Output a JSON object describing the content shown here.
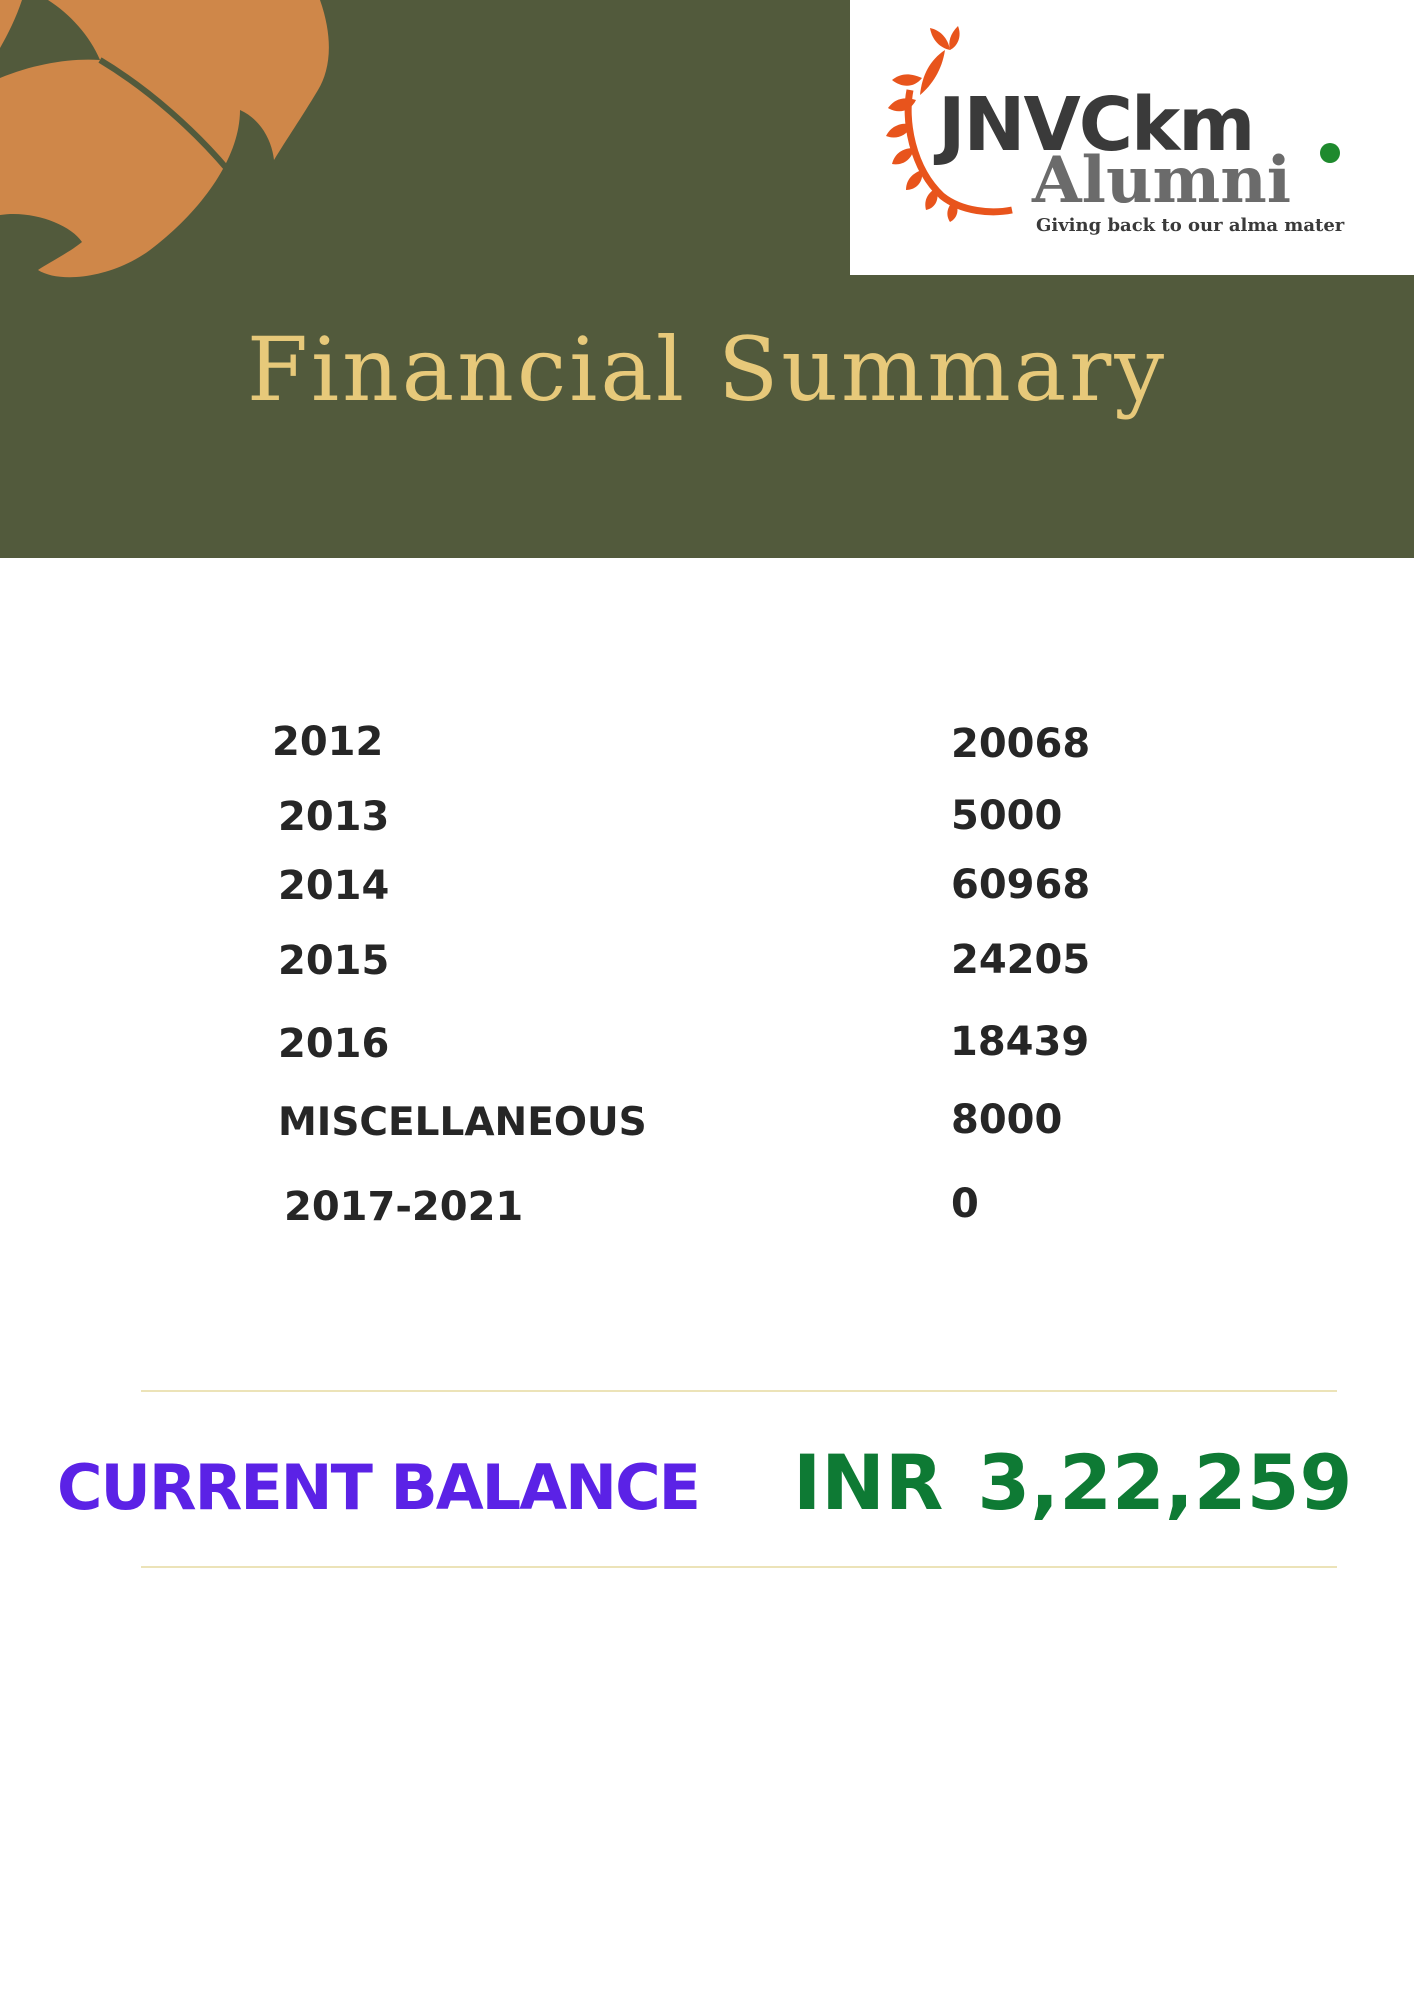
{
  "logo": {
    "line1": "JNVCkm",
    "line2": "Alumni",
    "tagline": "Giving back to our alma mater",
    "colors": {
      "wreath": "#e8541c",
      "text_dark": "#3a3a3a",
      "text_gray": "#6b6b6b",
      "dot": "#1e8a2e"
    }
  },
  "title": "Financial Summary",
  "rows": [
    {
      "label": "2012",
      "value": "20068"
    },
    {
      "label": "2013",
      "value": "5000"
    },
    {
      "label": "2014",
      "value": "60968"
    },
    {
      "label": "2015",
      "value": "24205"
    },
    {
      "label": "2016",
      "value": "18439"
    },
    {
      "label": "MISCELLANEOUS",
      "value": "8000"
    },
    {
      "label": "2017-2021",
      "value": "0"
    }
  ],
  "balance": {
    "label": "CURRENT BALANCE",
    "currency": "INR",
    "amount": "3,22,259"
  },
  "colors": {
    "header_bg": "#525a3c",
    "leaf": "#cf8749",
    "title": "#e7c97a",
    "balance_label": "#5b22e6",
    "balance_value": "#0e7a34",
    "divider": "#ece3b8"
  }
}
